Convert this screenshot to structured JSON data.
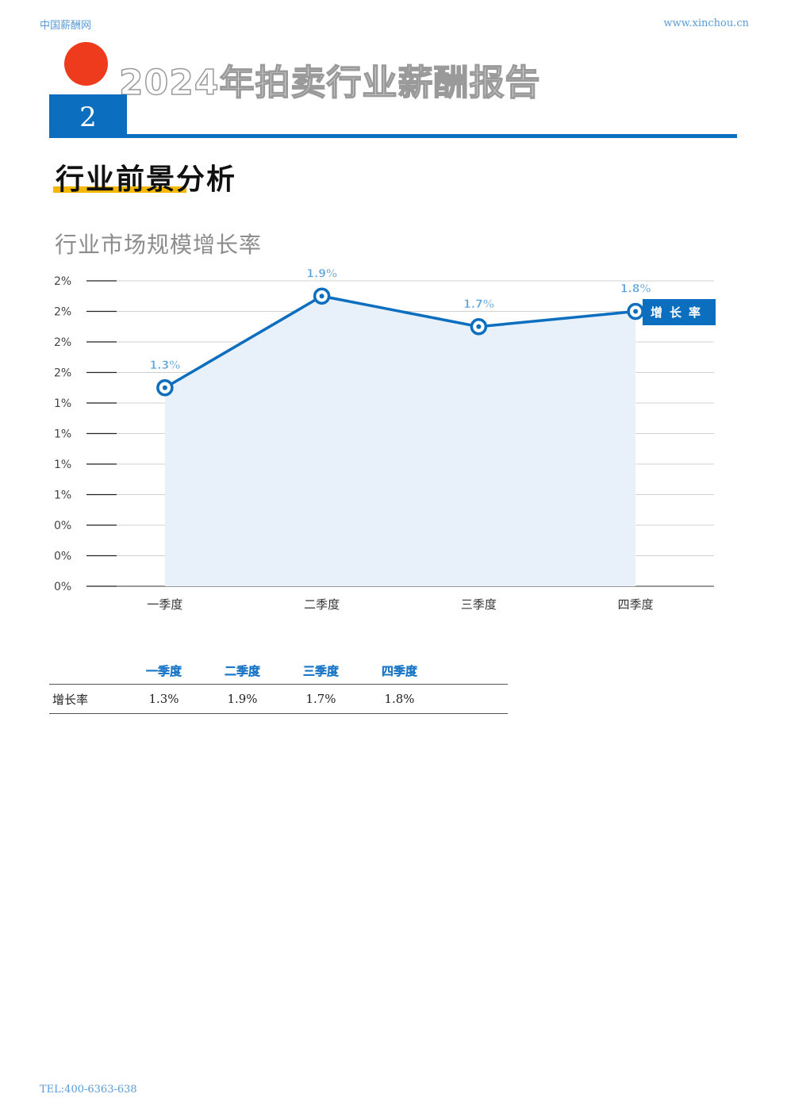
{
  "header": {
    "site_name": "中国薪酬网",
    "url": "www.xinchou.cn"
  },
  "report": {
    "title": "2024年拍卖行业薪酬报告",
    "chapter_number": "2"
  },
  "section": {
    "title": "行业前景分析"
  },
  "chart_data": {
    "type": "area",
    "title": "行业市场规模增长率",
    "categories": [
      "一季度",
      "二季度",
      "三季度",
      "四季度"
    ],
    "series": [
      {
        "name": "增长率",
        "values": [
          1.3,
          1.9,
          1.7,
          1.8
        ],
        "labels": [
          "1.3%",
          "1.9%",
          "1.7%",
          "1.8%"
        ]
      }
    ],
    "y_ticks": [
      "0%",
      "0%",
      "0%",
      "1%",
      "1%",
      "1%",
      "1%",
      "2%",
      "2%",
      "2%",
      "2%"
    ],
    "ylim": [
      0,
      2.0
    ],
    "grid": true,
    "legend_position": "right",
    "colors": {
      "line": "#0c6ebf",
      "fill": "#e8f1fa",
      "label": "#5aa0dc"
    }
  },
  "table": {
    "headers": [
      "",
      "一季度",
      "二季度",
      "三季度",
      "四季度",
      ""
    ],
    "rows": [
      {
        "label": "增长率",
        "cells": [
          "1.3%",
          "1.9%",
          "1.7%",
          "1.8%"
        ]
      }
    ]
  },
  "footer": {
    "tel": "TEL:400-6363-638"
  },
  "colors": {
    "accent_blue": "#0c6ebf",
    "accent_red": "#ee3b1d",
    "accent_yellow": "#f5b800"
  }
}
